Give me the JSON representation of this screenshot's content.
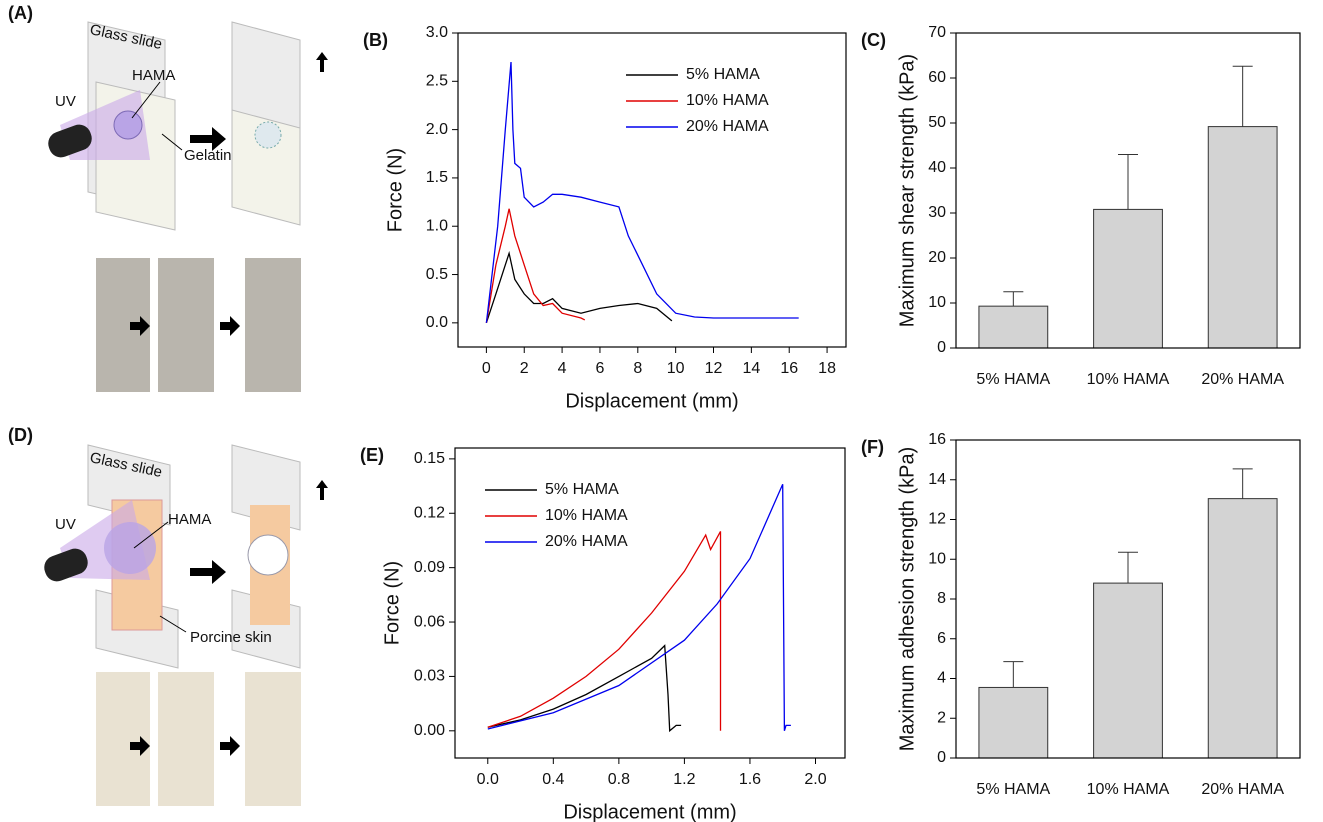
{
  "diagrams": [
    {
      "panel_label": "(A)",
      "labels": [
        "Glass slide",
        "HAMA",
        "UV",
        "Gelatin"
      ]
    },
    {
      "panel_label": "(D)",
      "labels": [
        "Glass slide",
        "HAMA",
        "UV",
        "Porcine skin"
      ]
    }
  ],
  "chart_data": [
    {
      "type": "line",
      "panel_label": "(B)",
      "x_label": "Displacement (mm)",
      "y_label": "Force (N)",
      "xlim": [
        -1.5,
        19
      ],
      "ylim": [
        -0.25,
        3.0
      ],
      "xticks": [
        0,
        2,
        4,
        6,
        8,
        10,
        12,
        14,
        16,
        18
      ],
      "yticks": [
        {
          "value": 0,
          "label": "0.0"
        },
        0.5,
        {
          "value": 1,
          "label": "1.0"
        },
        1.5,
        {
          "value": 2,
          "label": "2.0"
        },
        2.5,
        {
          "value": 3,
          "label": "3.0"
        }
      ],
      "legend": "upper right",
      "series": [
        {
          "name": "5% HAMA",
          "color": "#000000",
          "x": [
            0,
            0.5,
            1,
            1.2,
            1.5,
            2,
            2.5,
            3,
            3.5,
            4,
            5,
            6,
            7,
            8,
            9,
            9.8
          ],
          "values": [
            0,
            0.3,
            0.6,
            0.72,
            0.45,
            0.3,
            0.2,
            0.2,
            0.25,
            0.15,
            0.1,
            0.15,
            0.18,
            0.2,
            0.15,
            0.02
          ]
        },
        {
          "name": "10% HAMA",
          "color": "#e00000",
          "x": [
            0,
            0.5,
            1,
            1.2,
            1.5,
            2,
            2.5,
            3,
            3.5,
            4,
            5,
            5.2
          ],
          "values": [
            0,
            0.6,
            1.0,
            1.18,
            0.9,
            0.6,
            0.3,
            0.18,
            0.2,
            0.1,
            0.05,
            0.03
          ]
        },
        {
          "name": "20% HAMA",
          "color": "#0000ee",
          "x": [
            0,
            0.6,
            1,
            1.3,
            1.4,
            1.5,
            1.8,
            2,
            2.5,
            3,
            3.5,
            4,
            5,
            6,
            7,
            7.5,
            8,
            9,
            10,
            11,
            12,
            14,
            16.5
          ],
          "values": [
            0,
            1.0,
            2.0,
            2.7,
            2.0,
            1.65,
            1.6,
            1.3,
            1.2,
            1.25,
            1.33,
            1.33,
            1.3,
            1.25,
            1.2,
            0.9,
            0.7,
            0.3,
            0.1,
            0.06,
            0.05,
            0.05,
            0.05
          ]
        }
      ]
    },
    {
      "type": "bar",
      "panel_label": "(C)",
      "y_label": "Maximum shear strength (kPa)",
      "categories": [
        "5% HAMA",
        "10% HAMA",
        "20% HAMA"
      ],
      "values": [
        9.3,
        30.8,
        49.2
      ],
      "errors": [
        3.2,
        12.2,
        13.4
      ],
      "color": "#d3d3d3",
      "ylim": [
        0,
        70
      ],
      "yticks": [
        0,
        10,
        20,
        30,
        40,
        50,
        60,
        70
      ]
    },
    {
      "type": "line",
      "panel_label": "(E)",
      "x_label": "Displacement (mm)",
      "y_label": "Force (N)",
      "xlim": [
        -0.2,
        2.18
      ],
      "ylim": [
        -0.015,
        0.156
      ],
      "xticks": [
        {
          "value": 0,
          "label": "0.0"
        },
        0.4,
        0.8,
        1.2,
        1.6,
        {
          "value": 2,
          "label": "2.0"
        }
      ],
      "yticks": [
        {
          "value": 0,
          "label": "0.00"
        },
        0.03,
        0.06,
        0.09,
        0.12,
        0.15
      ],
      "legend": "upper left",
      "series": [
        {
          "name": "5% HAMA",
          "color": "#000000",
          "x": [
            0,
            0.2,
            0.4,
            0.6,
            0.8,
            1.0,
            1.08,
            1.1,
            1.11,
            1.15,
            1.18
          ],
          "values": [
            0.002,
            0.006,
            0.012,
            0.02,
            0.03,
            0.04,
            0.047,
            0.02,
            0,
            0.003,
            0.003
          ]
        },
        {
          "name": "10% HAMA",
          "color": "#e00000",
          "x": [
            0,
            0.2,
            0.4,
            0.6,
            0.8,
            1.0,
            1.2,
            1.33,
            1.36,
            1.42,
            1.42
          ],
          "values": [
            0.002,
            0.008,
            0.018,
            0.03,
            0.045,
            0.065,
            0.088,
            0.108,
            0.1,
            0.11,
            0
          ]
        },
        {
          "name": "20% HAMA",
          "color": "#0000ee",
          "x": [
            0,
            0.4,
            0.8,
            1.2,
            1.4,
            1.6,
            1.8,
            1.81,
            1.82,
            1.85
          ],
          "values": [
            0.001,
            0.01,
            0.025,
            0.05,
            0.07,
            0.095,
            0.136,
            0,
            0.003,
            0.003
          ]
        }
      ]
    },
    {
      "type": "bar",
      "panel_label": "(F)",
      "y_label": "Maximum adhesion strength (kPa)",
      "categories": [
        "5% HAMA",
        "10% HAMA",
        "20% HAMA"
      ],
      "values": [
        3.55,
        8.8,
        13.05
      ],
      "errors": [
        1.3,
        1.55,
        1.5
      ],
      "color": "#d3d3d3",
      "ylim": [
        0,
        16
      ],
      "yticks": [
        0,
        2,
        4,
        6,
        8,
        10,
        12,
        14,
        16
      ]
    }
  ]
}
